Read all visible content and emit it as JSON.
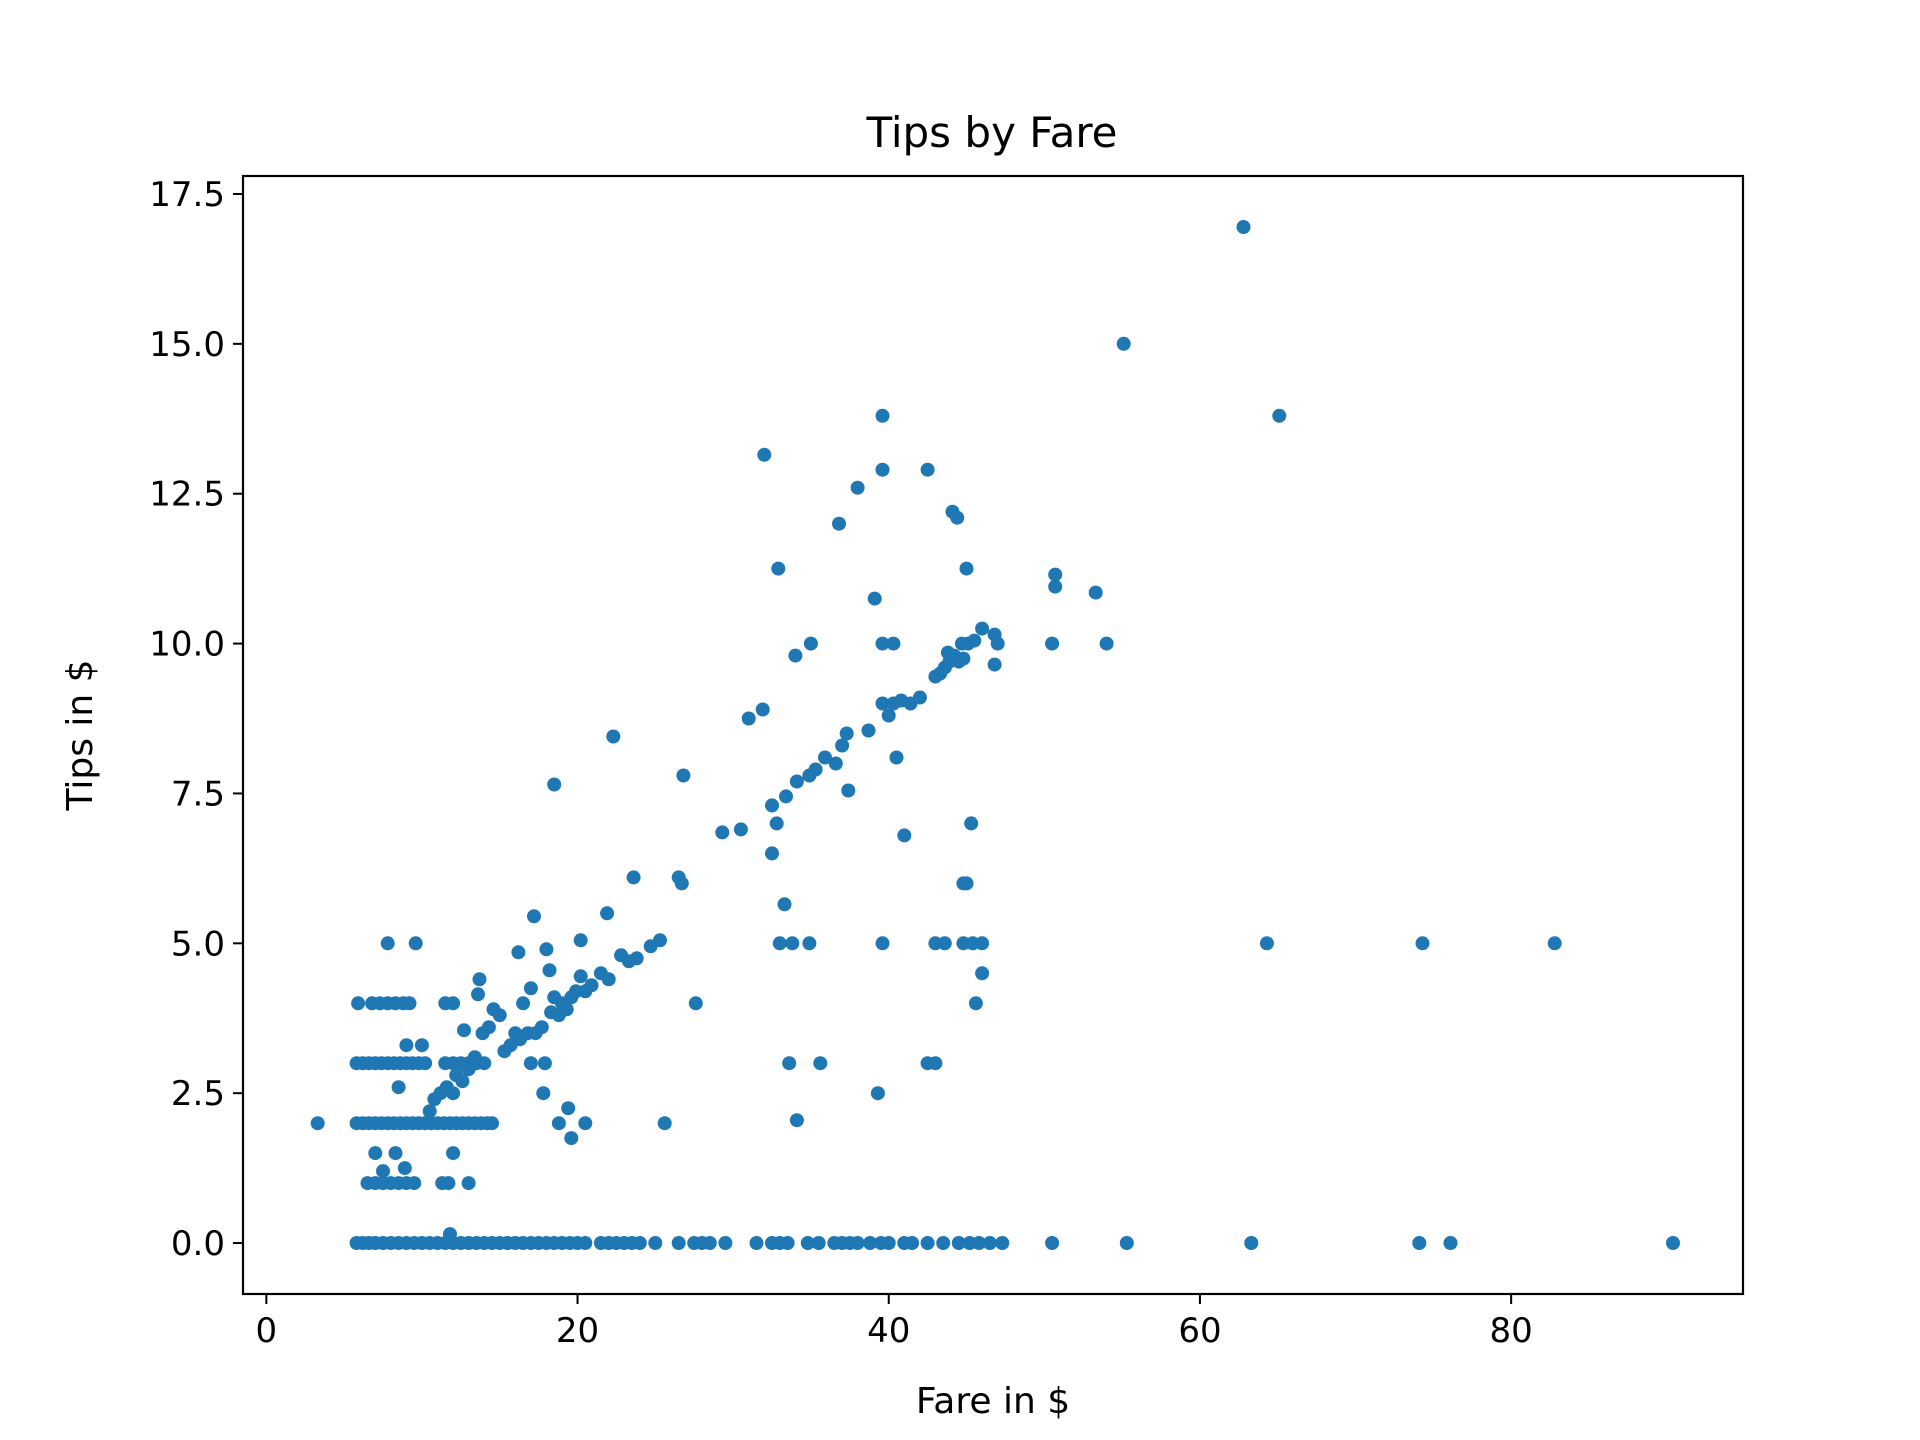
{
  "chart_data": {
    "type": "scatter",
    "title": "Tips by Fare",
    "xlabel": "Fare in $",
    "ylabel": "Tips in $",
    "xlim": [
      -1.5,
      94.9
    ],
    "ylim": [
      -0.85,
      17.8
    ],
    "xticks": [
      0,
      20,
      40,
      60,
      80
    ],
    "xtick_labels": [
      "0",
      "20",
      "40",
      "60",
      "80"
    ],
    "yticks": [
      0,
      2.5,
      5,
      7.5,
      10,
      12.5,
      15,
      17.5
    ],
    "ytick_labels": [
      "0.0",
      "2.5",
      "5.0",
      "7.5",
      "10.0",
      "12.5",
      "15.0",
      "17.5"
    ],
    "grid": false,
    "color": "#1f77b4",
    "series": [
      {
        "points": [
          [
            3.3,
            2.0
          ],
          [
            5.8,
            0
          ],
          [
            6.2,
            0
          ],
          [
            6.6,
            0
          ],
          [
            7.0,
            0
          ],
          [
            7.5,
            0
          ],
          [
            8.0,
            0
          ],
          [
            8.5,
            0
          ],
          [
            9.0,
            0
          ],
          [
            9.5,
            0
          ],
          [
            10.0,
            0
          ],
          [
            10.5,
            0
          ],
          [
            11.0,
            0
          ],
          [
            11.5,
            0
          ],
          [
            12.0,
            0
          ],
          [
            12.5,
            0
          ],
          [
            13.0,
            0
          ],
          [
            13.5,
            0
          ],
          [
            14.0,
            0
          ],
          [
            14.5,
            0
          ],
          [
            15.0,
            0
          ],
          [
            15.5,
            0
          ],
          [
            16.0,
            0
          ],
          [
            16.5,
            0
          ],
          [
            17.0,
            0
          ],
          [
            17.5,
            0
          ],
          [
            18.0,
            0
          ],
          [
            18.5,
            0
          ],
          [
            19.0,
            0
          ],
          [
            19.5,
            0
          ],
          [
            20.0,
            0
          ],
          [
            20.5,
            0
          ],
          [
            21.5,
            0
          ],
          [
            22.0,
            0
          ],
          [
            22.5,
            0
          ],
          [
            23.0,
            0
          ],
          [
            23.5,
            0
          ],
          [
            24.0,
            0
          ],
          [
            25.0,
            0
          ],
          [
            26.5,
            0
          ],
          [
            27.5,
            0
          ],
          [
            28.0,
            0
          ],
          [
            28.5,
            0
          ],
          [
            29.5,
            0
          ],
          [
            31.5,
            0
          ],
          [
            32.5,
            0
          ],
          [
            33.0,
            0
          ],
          [
            33.5,
            0
          ],
          [
            34.8,
            0
          ],
          [
            35.5,
            0
          ],
          [
            36.5,
            0
          ],
          [
            37.0,
            0
          ],
          [
            37.5,
            0
          ],
          [
            38.0,
            0
          ],
          [
            38.8,
            0
          ],
          [
            39.5,
            0
          ],
          [
            40.0,
            0
          ],
          [
            41.0,
            0
          ],
          [
            41.5,
            0
          ],
          [
            42.5,
            0
          ],
          [
            43.5,
            0
          ],
          [
            44.5,
            0
          ],
          [
            45.2,
            0
          ],
          [
            45.8,
            0
          ],
          [
            46.5,
            0
          ],
          [
            47.3,
            0
          ],
          [
            50.5,
            0
          ],
          [
            55.3,
            0
          ],
          [
            63.3,
            0
          ],
          [
            74.1,
            0
          ],
          [
            76.1,
            0
          ],
          [
            90.4,
            0
          ],
          [
            11.8,
            0.15
          ],
          [
            6.5,
            1.0
          ],
          [
            7.0,
            1.0
          ],
          [
            7.5,
            1.0
          ],
          [
            8.0,
            1.0
          ],
          [
            8.5,
            1.0
          ],
          [
            9.0,
            1.0
          ],
          [
            9.5,
            1.0
          ],
          [
            11.3,
            1.0
          ],
          [
            11.7,
            1.0
          ],
          [
            13.0,
            1.0
          ],
          [
            7.0,
            1.5
          ],
          [
            7.5,
            1.2
          ],
          [
            8.3,
            1.5
          ],
          [
            8.9,
            1.25
          ],
          [
            12.0,
            1.5
          ],
          [
            5.8,
            2.0
          ],
          [
            6.2,
            2.0
          ],
          [
            6.6,
            2.0
          ],
          [
            7.0,
            2.0
          ],
          [
            7.4,
            2.0
          ],
          [
            7.8,
            2.0
          ],
          [
            8.2,
            2.0
          ],
          [
            8.6,
            2.0
          ],
          [
            9.0,
            2.0
          ],
          [
            9.4,
            2.0
          ],
          [
            9.8,
            2.0
          ],
          [
            10.2,
            2.0
          ],
          [
            10.6,
            2.0
          ],
          [
            11.0,
            2.0
          ],
          [
            11.4,
            2.0
          ],
          [
            11.8,
            2.0
          ],
          [
            12.2,
            2.0
          ],
          [
            12.6,
            2.0
          ],
          [
            13.0,
            2.0
          ],
          [
            13.4,
            2.0
          ],
          [
            13.8,
            2.0
          ],
          [
            14.2,
            2.0
          ],
          [
            14.5,
            2.0
          ],
          [
            8.5,
            2.6
          ],
          [
            10.5,
            2.2
          ],
          [
            10.8,
            2.4
          ],
          [
            11.2,
            2.5
          ],
          [
            11.6,
            2.6
          ],
          [
            12.0,
            2.5
          ],
          [
            5.8,
            3.0
          ],
          [
            6.2,
            3.0
          ],
          [
            6.6,
            3.0
          ],
          [
            7.0,
            3.0
          ],
          [
            7.4,
            3.0
          ],
          [
            7.8,
            3.0
          ],
          [
            8.2,
            3.0
          ],
          [
            8.6,
            3.0
          ],
          [
            9.0,
            3.0
          ],
          [
            9.4,
            3.0
          ],
          [
            9.8,
            3.0
          ],
          [
            10.2,
            3.0
          ],
          [
            11.5,
            3.0
          ],
          [
            12.0,
            3.0
          ],
          [
            12.5,
            3.0
          ],
          [
            13.0,
            3.0
          ],
          [
            13.5,
            3.0
          ],
          [
            14.0,
            3.0
          ],
          [
            9.0,
            3.3
          ],
          [
            10.0,
            3.3
          ],
          [
            12.2,
            2.8
          ],
          [
            12.6,
            2.7
          ],
          [
            13.0,
            2.9
          ],
          [
            13.4,
            3.1
          ],
          [
            5.9,
            4.0
          ],
          [
            6.8,
            4.0
          ],
          [
            7.3,
            4.0
          ],
          [
            7.8,
            4.0
          ],
          [
            8.3,
            4.0
          ],
          [
            8.8,
            4.0
          ],
          [
            9.2,
            4.0
          ],
          [
            11.5,
            4.0
          ],
          [
            12.0,
            4.0
          ],
          [
            7.8,
            5.0
          ],
          [
            9.6,
            5.0
          ],
          [
            12.7,
            3.55
          ],
          [
            13.6,
            4.15
          ],
          [
            13.7,
            4.4
          ],
          [
            13.9,
            3.5
          ],
          [
            14.3,
            3.6
          ],
          [
            14.6,
            3.9
          ],
          [
            15.0,
            3.8
          ],
          [
            15.3,
            3.2
          ],
          [
            15.7,
            3.3
          ],
          [
            16.0,
            3.5
          ],
          [
            16.3,
            3.4
          ],
          [
            16.5,
            4.0
          ],
          [
            16.8,
            3.5
          ],
          [
            17.0,
            4.25
          ],
          [
            17.3,
            3.5
          ],
          [
            17.7,
            3.6
          ],
          [
            16.2,
            4.85
          ],
          [
            17.2,
            5.45
          ],
          [
            17.0,
            3.0
          ],
          [
            17.8,
            2.5
          ],
          [
            17.9,
            3.0
          ],
          [
            18.0,
            4.9
          ],
          [
            18.2,
            4.55
          ],
          [
            18.3,
            3.85
          ],
          [
            18.5,
            4.1
          ],
          [
            18.8,
            3.8
          ],
          [
            19.0,
            4.0
          ],
          [
            19.3,
            3.9
          ],
          [
            19.6,
            4.1
          ],
          [
            19.9,
            4.2
          ],
          [
            20.2,
            4.45
          ],
          [
            20.5,
            4.2
          ],
          [
            20.9,
            4.3
          ],
          [
            21.5,
            4.5
          ],
          [
            22.0,
            4.4
          ],
          [
            22.8,
            4.8
          ],
          [
            23.3,
            4.7
          ],
          [
            23.8,
            4.75
          ],
          [
            24.7,
            4.95
          ],
          [
            25.3,
            5.05
          ],
          [
            20.2,
            5.05
          ],
          [
            21.9,
            5.5
          ],
          [
            23.6,
            6.1
          ],
          [
            26.5,
            6.1
          ],
          [
            26.7,
            6.0
          ],
          [
            29.3,
            6.85
          ],
          [
            30.5,
            6.9
          ],
          [
            18.5,
            7.65
          ],
          [
            22.3,
            8.45
          ],
          [
            26.8,
            7.8
          ],
          [
            18.8,
            2.0
          ],
          [
            19.4,
            2.25
          ],
          [
            19.6,
            1.75
          ],
          [
            20.5,
            2.0
          ],
          [
            25.6,
            2.0
          ],
          [
            27.6,
            4.0
          ],
          [
            32.5,
            7.3
          ],
          [
            32.8,
            7.0
          ],
          [
            33.4,
            7.45
          ],
          [
            34.1,
            7.7
          ],
          [
            34.9,
            7.8
          ],
          [
            35.3,
            7.9
          ],
          [
            35.9,
            8.1
          ],
          [
            36.6,
            8.0
          ],
          [
            37.0,
            8.3
          ],
          [
            37.3,
            8.5
          ],
          [
            38.7,
            8.55
          ],
          [
            37.4,
            7.55
          ],
          [
            31.0,
            8.75
          ],
          [
            31.9,
            8.9
          ],
          [
            32.5,
            6.5
          ],
          [
            33.3,
            5.65
          ],
          [
            33.0,
            5.0
          ],
          [
            33.8,
            5.0
          ],
          [
            34.9,
            5.0
          ],
          [
            39.6,
            5.0
          ],
          [
            33.6,
            3.0
          ],
          [
            34.1,
            2.05
          ],
          [
            35.6,
            3.0
          ],
          [
            39.3,
            2.5
          ],
          [
            32.0,
            13.15
          ],
          [
            32.9,
            11.25
          ],
          [
            34.0,
            9.8
          ],
          [
            35.0,
            10.0
          ],
          [
            36.8,
            12.0
          ],
          [
            38.0,
            12.6
          ],
          [
            39.6,
            12.9
          ],
          [
            39.6,
            13.8
          ],
          [
            39.1,
            10.75
          ],
          [
            39.6,
            10.0
          ],
          [
            40.3,
            10.0
          ],
          [
            39.6,
            9.0
          ],
          [
            40.0,
            8.8
          ],
          [
            40.3,
            9.0
          ],
          [
            40.8,
            9.05
          ],
          [
            41.4,
            9.0
          ],
          [
            42.0,
            9.1
          ],
          [
            40.5,
            8.1
          ],
          [
            41.0,
            6.8
          ],
          [
            43.0,
            9.45
          ],
          [
            43.3,
            9.5
          ],
          [
            43.6,
            9.6
          ],
          [
            43.9,
            9.7
          ],
          [
            44.2,
            9.8
          ],
          [
            44.5,
            9.7
          ],
          [
            44.8,
            9.75
          ],
          [
            45.1,
            10.0
          ],
          [
            45.5,
            10.05
          ],
          [
            43.8,
            9.85
          ],
          [
            46.0,
            10.25
          ],
          [
            46.8,
            10.15
          ],
          [
            47.0,
            10.0
          ],
          [
            46.8,
            9.65
          ],
          [
            42.5,
            12.9
          ],
          [
            44.1,
            12.2
          ],
          [
            44.4,
            12.1
          ],
          [
            45.0,
            11.25
          ],
          [
            44.7,
            10.0
          ],
          [
            42.5,
            3.0
          ],
          [
            43.0,
            3.0
          ],
          [
            43.0,
            5.0
          ],
          [
            43.6,
            5.0
          ],
          [
            44.8,
            5.0
          ],
          [
            45.4,
            5.0
          ],
          [
            46.0,
            5.0
          ],
          [
            45.3,
            7.0
          ],
          [
            44.8,
            6.0
          ],
          [
            45.0,
            6.0
          ],
          [
            46.0,
            4.5
          ],
          [
            45.6,
            4.0
          ],
          [
            50.5,
            10.0
          ],
          [
            50.7,
            10.95
          ],
          [
            50.7,
            11.15
          ],
          [
            53.3,
            10.85
          ],
          [
            54.0,
            10.0
          ],
          [
            55.1,
            15.0
          ],
          [
            62.8,
            16.95
          ],
          [
            65.1,
            13.8
          ],
          [
            64.3,
            5.0
          ],
          [
            74.3,
            5.0
          ],
          [
            82.8,
            5.0
          ]
        ]
      }
    ]
  }
}
